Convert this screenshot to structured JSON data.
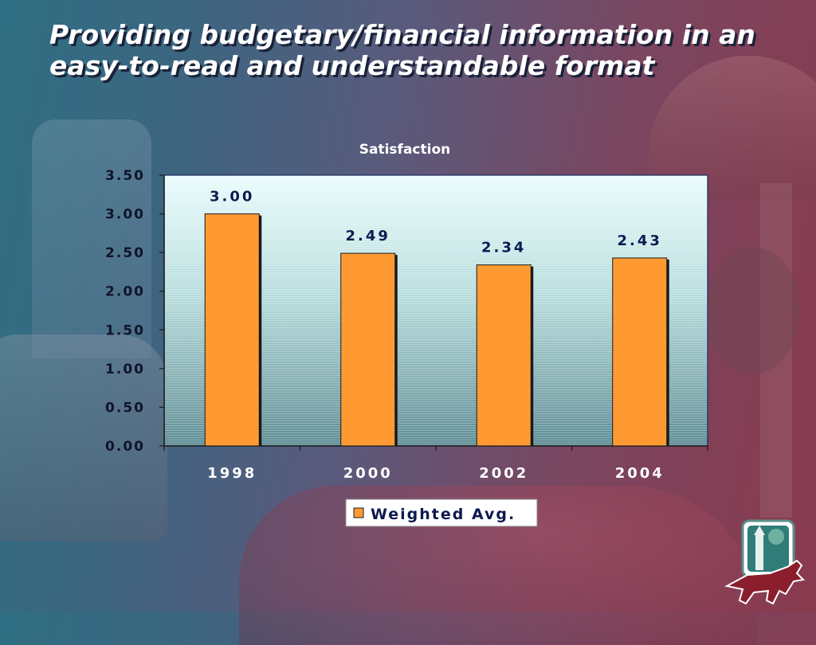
{
  "slide": {
    "title": "Providing budgetary/financial information in an easy-to-read and understandable format"
  },
  "colors": {
    "bar_fill": "#ff9a33",
    "bar_edge": "#1a1a1a",
    "label_color": "#0d1a50",
    "plot_background_top": "#eafcfd",
    "plot_background_bottom": "#5f8d95"
  },
  "chart_data": {
    "type": "bar",
    "title": "Satisfaction",
    "categories": [
      "1998",
      "2000",
      "2002",
      "2004"
    ],
    "series": [
      {
        "name": "Weighted Avg.",
        "values": [
          3.0,
          2.49,
          2.34,
          2.43
        ]
      }
    ],
    "data_labels": [
      "3.00",
      "2.49",
      "2.34",
      "2.43"
    ],
    "ytick_labels": [
      "0.00",
      "0.50",
      "1.00",
      "1.50",
      "2.00",
      "2.50",
      "3.00",
      "3.50"
    ],
    "ylim": [
      0,
      3.5
    ],
    "xlabel": "",
    "ylabel": "",
    "grid": false,
    "legend_position": "bottom"
  },
  "logo": {
    "description_icon": "fox-and-tower-logo"
  }
}
